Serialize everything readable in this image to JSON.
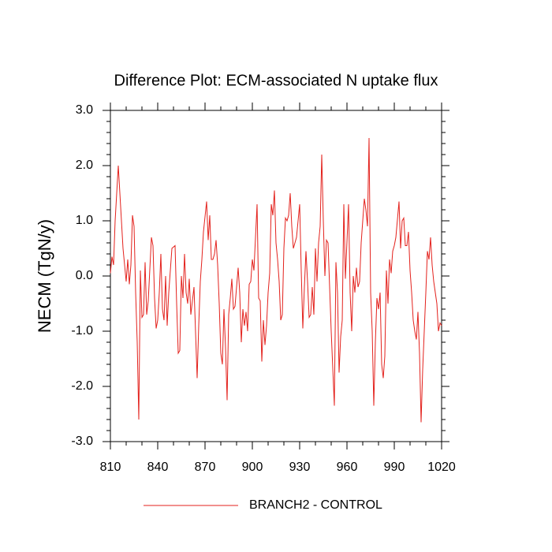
{
  "chart_data": {
    "type": "line",
    "title": "Difference Plot: ECM-associated N uptake flux",
    "y_label": "NECM  (TgN/y)",
    "x": [
      810,
      811,
      812,
      813,
      815,
      817,
      818,
      819,
      820,
      821,
      822,
      823,
      824,
      825,
      826,
      827,
      828,
      829,
      830,
      831,
      832,
      833,
      834,
      836,
      837,
      838,
      839,
      840,
      841,
      842,
      843,
      844,
      845,
      846,
      847,
      849,
      851,
      852,
      853,
      854,
      855,
      856,
      857,
      858,
      859,
      860,
      861,
      863,
      865,
      866,
      867,
      868,
      869,
      871,
      872,
      873,
      874,
      875,
      876,
      877,
      878,
      879,
      880,
      881,
      882,
      883,
      884,
      885,
      886,
      887,
      888,
      889,
      891,
      892,
      893,
      894,
      895,
      896,
      897,
      898,
      899,
      900,
      901,
      903,
      904,
      905,
      906,
      907,
      908,
      909,
      910,
      911,
      912,
      913,
      914,
      915,
      916,
      917,
      918,
      919,
      920,
      921,
      922,
      923,
      924,
      925,
      926,
      927,
      928,
      929,
      930,
      931,
      932,
      933,
      934,
      935,
      936,
      937,
      938,
      939,
      940,
      941,
      942,
      943,
      944,
      945,
      946,
      947,
      948,
      949,
      950,
      952,
      953,
      954,
      955,
      956,
      957,
      958,
      959,
      961,
      962,
      963,
      964,
      965,
      966,
      967,
      968,
      969,
      971,
      972,
      973,
      974,
      975,
      976,
      977,
      978,
      979,
      980,
      981,
      982,
      983,
      984,
      985,
      986,
      987,
      988,
      989,
      990,
      991,
      993,
      994,
      995,
      996,
      997,
      998,
      999,
      1000,
      1001,
      1002,
      1003,
      1004,
      1005,
      1006,
      1007,
      1008,
      1009,
      1010,
      1011,
      1012,
      1013,
      1014,
      1015,
      1016,
      1017,
      1018,
      1019,
      1020
    ],
    "series": [
      {
        "name": "BRANCH2 - CONTROL",
        "color": "#e3211c",
        "values": [
          0.05,
          0.35,
          0.2,
          1.0,
          2.0,
          1.0,
          0.5,
          0.2,
          -0.1,
          0.3,
          -0.15,
          0.2,
          1.1,
          0.9,
          -0.3,
          -1.2,
          -2.6,
          0.1,
          -0.75,
          -0.7,
          0.25,
          -0.7,
          -0.45,
          0.7,
          0.55,
          -0.4,
          -0.95,
          -0.8,
          -0.3,
          0.4,
          -0.6,
          -0.8,
          0.0,
          -0.9,
          -0.3,
          0.5,
          0.55,
          -0.5,
          -1.4,
          -1.35,
          0.0,
          -0.4,
          0.4,
          -0.3,
          -0.5,
          -0.05,
          -0.7,
          -0.2,
          -1.85,
          -0.9,
          -0.1,
          0.3,
          0.8,
          1.35,
          0.65,
          1.1,
          0.3,
          0.3,
          0.4,
          0.65,
          0.2,
          -0.5,
          -1.4,
          -1.6,
          -0.6,
          -1.3,
          -2.25,
          -0.7,
          -0.4,
          -0.05,
          -0.6,
          -0.55,
          0.15,
          -0.3,
          -1.2,
          -0.6,
          -0.9,
          -0.65,
          -1.0,
          -0.15,
          -0.1,
          0.3,
          0.1,
          1.3,
          -0.4,
          -0.45,
          -1.55,
          -0.8,
          -1.25,
          -0.9,
          -0.3,
          0.05,
          1.3,
          1.1,
          1.55,
          0.6,
          0.3,
          -0.1,
          -0.8,
          -0.7,
          0.5,
          1.05,
          1.0,
          1.1,
          1.5,
          0.9,
          0.5,
          0.6,
          0.7,
          1.0,
          1.3,
          0.1,
          -0.95,
          -0.2,
          0.45,
          -0.1,
          -0.75,
          -0.7,
          -0.2,
          -0.7,
          0.5,
          -0.1,
          0.6,
          0.9,
          2.2,
          1.0,
          0.0,
          0.65,
          0.6,
          -0.2,
          -1.0,
          -2.35,
          0.25,
          -0.3,
          -1.75,
          -1.1,
          -0.8,
          1.3,
          -0.05,
          1.3,
          -0.3,
          -1.0,
          0.0,
          -0.3,
          0.15,
          -0.2,
          -0.1,
          0.6,
          1.4,
          1.2,
          0.9,
          2.5,
          -0.3,
          -1.0,
          -2.35,
          -1.2,
          -0.4,
          -0.6,
          -0.3,
          -1.6,
          -1.85,
          -1.45,
          0.1,
          -0.5,
          0.3,
          0.05,
          0.45,
          0.55,
          0.7,
          1.35,
          0.5,
          1.0,
          1.05,
          0.55,
          0.55,
          0.8,
          0.1,
          -0.3,
          -0.8,
          -1.0,
          -1.15,
          -0.65,
          -1.4,
          -2.65,
          -1.7,
          -1.0,
          -0.3,
          0.45,
          0.3,
          0.7,
          0.2,
          -0.1,
          -0.3,
          -0.5,
          -1.0,
          -0.85,
          -0.9
        ]
      }
    ],
    "xlim": [
      810,
      1020
    ],
    "xticks": [
      810,
      840,
      870,
      900,
      930,
      960,
      990,
      1020
    ],
    "ylim": [
      -3,
      3
    ],
    "yticks": [
      {
        "value": -3,
        "label": "-3.0"
      },
      {
        "value": -2,
        "label": "-2.0"
      },
      {
        "value": -1,
        "label": "-1.0"
      },
      {
        "value": 0,
        "label": "0.0"
      },
      {
        "value": 1,
        "label": "1.0"
      },
      {
        "value": 2,
        "label": "2.0"
      },
      {
        "value": 3,
        "label": "3.0"
      }
    ],
    "legend": "bottom"
  }
}
